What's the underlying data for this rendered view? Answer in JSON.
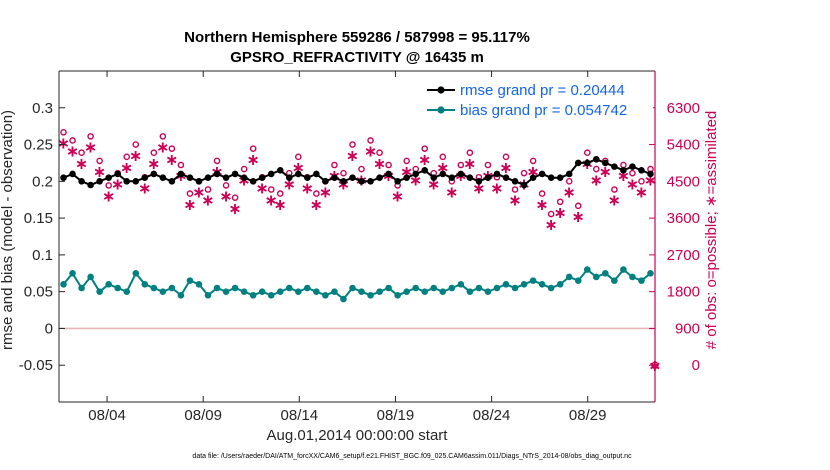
{
  "chart_data": {
    "type": "line",
    "title_line1": "Northern Hemisphere 559286 / 587998 = 95.117%",
    "title_line2": "GPSRO_REFRACTIVITY @ 16435 m",
    "xlabel": "Aug.01,2014 00:00:00 start",
    "ylabel_left": "rmse and bias (model - observation)",
    "ylabel_right": "# of obs: o=possible; ∗=assimilated",
    "footer": "data file: /Users/raeder/DAI/ATM_forcXX/CAM6_setup/f.e21.FHIST_BGC.f09_025.CAM6assim.011/Diags_NTrS_2014-08/obs_diag_output.nc",
    "x_range_days": [
      1.5,
      32.5
    ],
    "x_ticks": [
      {
        "day": 4,
        "label": "08/04"
      },
      {
        "day": 9,
        "label": "08/09"
      },
      {
        "day": 14,
        "label": "08/14"
      },
      {
        "day": 19,
        "label": "08/19"
      },
      {
        "day": 24,
        "label": "08/24"
      },
      {
        "day": 29,
        "label": "08/29"
      }
    ],
    "ylim_left": [
      -0.1,
      0.35
    ],
    "yticks_left": [
      "-0.05",
      "0",
      "0.05",
      "0.1",
      "0.15",
      "0.2",
      "0.25",
      "0.3"
    ],
    "ylim_right": [
      -900,
      7200
    ],
    "yticks_right": [
      "0",
      "900",
      "1800",
      "2700",
      "3600",
      "4500",
      "5400",
      "6300"
    ],
    "zero_line": {
      "value": 0,
      "color": "#e8b4b8"
    },
    "colors": {
      "rmse": "#000000",
      "bias": "#008080",
      "obs": "#cc0055",
      "title": "#000000",
      "legend_text": "#1565e6"
    },
    "legend": [
      {
        "label": "rmse grand pr = 0.20444",
        "series": "rmse"
      },
      {
        "label": "bias grand pr = 0.054742",
        "series": "bias"
      }
    ],
    "series": [
      {
        "name": "rmse",
        "axis": "left",
        "values": [
          0.205,
          0.21,
          0.2,
          0.195,
          0.2,
          0.205,
          0.21,
          0.2,
          0.2,
          0.205,
          0.21,
          0.205,
          0.2,
          0.21,
          0.205,
          0.2,
          0.205,
          0.21,
          0.205,
          0.21,
          0.205,
          0.2,
          0.205,
          0.21,
          0.215,
          0.205,
          0.21,
          0.205,
          0.21,
          0.2,
          0.205,
          0.2,
          0.205,
          0.2,
          0.2,
          0.205,
          0.21,
          0.2,
          0.205,
          0.21,
          0.215,
          0.205,
          0.21,
          0.205,
          0.21,
          0.205,
          0.2,
          0.205,
          0.21,
          0.205,
          0.2,
          0.195,
          0.205,
          0.21,
          0.205,
          0.205,
          0.21,
          0.225,
          0.225,
          0.23,
          0.225,
          0.22,
          0.215,
          0.22,
          0.215,
          0.21
        ]
      },
      {
        "name": "bias",
        "axis": "left",
        "values": [
          0.06,
          0.075,
          0.055,
          0.07,
          0.05,
          0.06,
          0.055,
          0.05,
          0.075,
          0.06,
          0.055,
          0.05,
          0.055,
          0.045,
          0.065,
          0.06,
          0.045,
          0.055,
          0.05,
          0.055,
          0.05,
          0.045,
          0.05,
          0.045,
          0.05,
          0.055,
          0.05,
          0.055,
          0.05,
          0.045,
          0.05,
          0.04,
          0.055,
          0.05,
          0.045,
          0.05,
          0.055,
          0.045,
          0.05,
          0.055,
          0.05,
          0.055,
          0.05,
          0.055,
          0.06,
          0.05,
          0.055,
          0.05,
          0.055,
          0.06,
          0.055,
          0.06,
          0.065,
          0.06,
          0.055,
          0.06,
          0.07,
          0.065,
          0.08,
          0.07,
          0.075,
          0.065,
          0.08,
          0.07,
          0.065,
          0.075
        ]
      },
      {
        "name": "possible",
        "axis": "right",
        "marker": "o",
        "values": [
          5700,
          5500,
          5200,
          5600,
          5000,
          4400,
          4700,
          5100,
          5400,
          4600,
          5200,
          5600,
          5300,
          4900,
          4200,
          4500,
          4300,
          5000,
          4400,
          4100,
          4800,
          5300,
          4600,
          4300,
          4200,
          4700,
          5100,
          4600,
          4200,
          4500,
          4900,
          4700,
          5400,
          4800,
          5500,
          5200,
          4900,
          4400,
          5000,
          4800,
          5300,
          4700,
          5100,
          4500,
          4900,
          5200,
          4600,
          4900,
          4600,
          5100,
          4300,
          4700,
          5000,
          4200,
          3700,
          4000,
          4500,
          3900,
          5200,
          4800,
          5000,
          4300,
          4900,
          4700,
          4500,
          4800
        ]
      },
      {
        "name": "assimilated",
        "axis": "right",
        "marker": "*",
        "values": [
          5450,
          5250,
          4950,
          5350,
          4750,
          4150,
          4450,
          4850,
          5150,
          4350,
          4950,
          5350,
          5050,
          4650,
          3950,
          4250,
          4050,
          4750,
          4150,
          3850,
          4550,
          5050,
          4350,
          4050,
          3950,
          4450,
          4850,
          4350,
          3950,
          4250,
          4650,
          4450,
          5150,
          4550,
          5250,
          4950,
          4650,
          4150,
          4750,
          4550,
          5050,
          4450,
          4850,
          4250,
          4650,
          4950,
          4350,
          4650,
          4350,
          4850,
          4050,
          4450,
          4750,
          3950,
          3450,
          3750,
          4250,
          3650,
          4950,
          4550,
          4750,
          4050,
          4650,
          4450,
          4250,
          4550
        ]
      }
    ],
    "extra_points": [
      {
        "series": "possible+assimilated",
        "day": 32.5,
        "value": 0
      }
    ]
  }
}
